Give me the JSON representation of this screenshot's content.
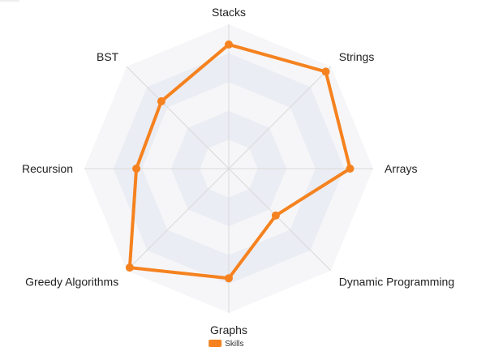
{
  "chart_data": {
    "type": "radar",
    "categories": [
      "Stacks",
      "Strings",
      "Arrays",
      "Dynamic Programming",
      "Graphs",
      "Greedy Algorithms",
      "Recursion",
      "BST"
    ],
    "series": [
      {
        "name": "Skills",
        "values": [
          86,
          95,
          84,
          46,
          76,
          97,
          64,
          66
        ]
      }
    ],
    "rlim": [
      0,
      100
    ],
    "ring_count": 5,
    "grid": true,
    "legend_position": "bottom",
    "colors": {
      "series": "#f5821f",
      "grid_line": "#d9d9d9",
      "band_light": "#f6f6f8",
      "band_dark": "#ebedf4"
    }
  }
}
